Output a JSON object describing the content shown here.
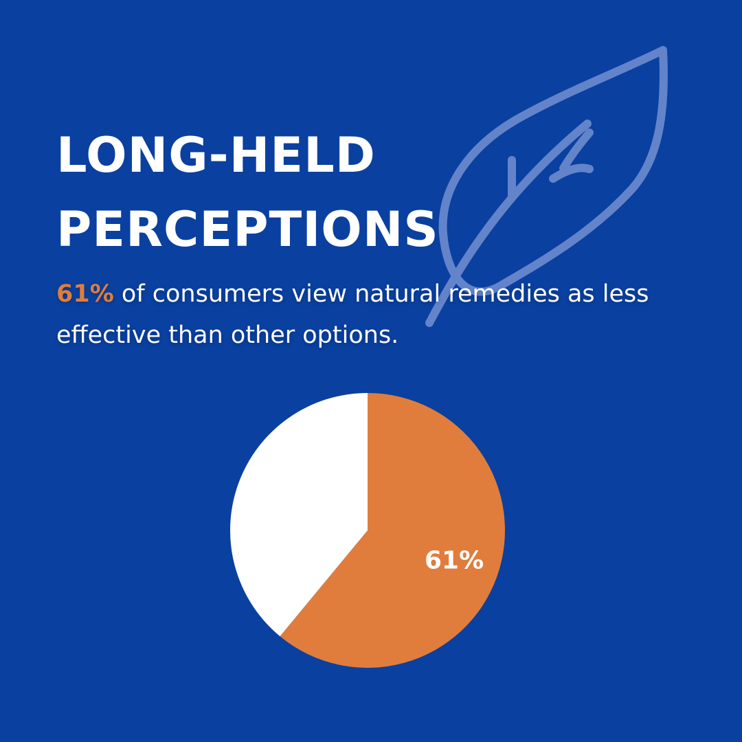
{
  "colors": {
    "background": "#0a40a0",
    "accent": "#e07d3c",
    "text": "#ffffff",
    "leaf": "#6d8ccf"
  },
  "decor": {
    "icon": "leaf-icon"
  },
  "headline": {
    "line1": "LONG-HELD",
    "line2": "PERCEPTIONS"
  },
  "statement": {
    "highlight": "61%",
    "text": " of consumers view natural remedies as less effective than other options."
  },
  "chart_data": {
    "type": "pie",
    "slices": [
      {
        "value": 61,
        "color": "#e07d3c",
        "label": "61%"
      },
      {
        "value": 39,
        "color": "#ffffff",
        "label": ""
      }
    ],
    "start": "12 o'clock",
    "direction": "clockwise",
    "legend": "none"
  }
}
